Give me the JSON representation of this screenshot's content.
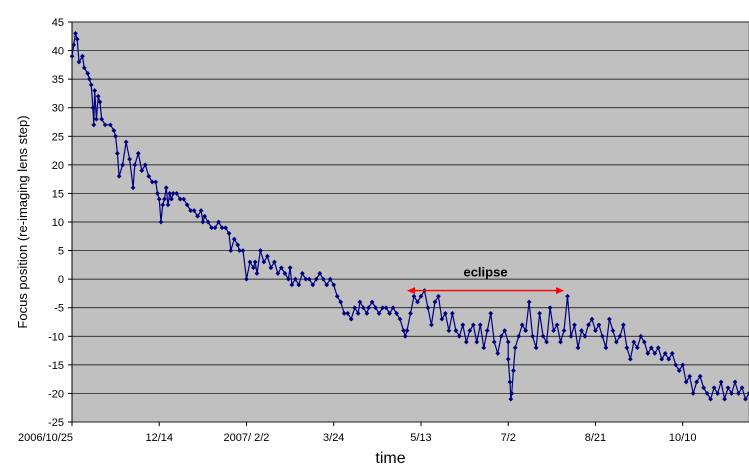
{
  "chart_data": {
    "type": "line",
    "title": "",
    "xlabel": "time",
    "ylabel": "Focus position (re-imaging lens step)",
    "ylim": [
      -25,
      45
    ],
    "y_ticks": [
      "45",
      "40",
      "35",
      "30",
      "25",
      "20",
      "15",
      "10",
      "5",
      "0",
      "-5",
      "-10",
      "-15",
      "-20",
      "-25"
    ],
    "x_ticks": [
      "2006/10/25",
      "12/14",
      "2007/ 2/2",
      "3/24",
      "5/13",
      "7/2",
      "8/21",
      "10/10"
    ],
    "x_tick_days": [
      0,
      50,
      100,
      150,
      200,
      250,
      300,
      350
    ],
    "xlim_days": [
      0,
      388
    ],
    "grid": true,
    "background": "#c0c0c0",
    "series_color": "#000080",
    "annotation": {
      "text": "eclipse",
      "from_day": 192,
      "to_day": 282,
      "y": -2,
      "color": "#ff0000"
    },
    "points": [
      [
        0,
        39
      ],
      [
        1,
        41
      ],
      [
        2,
        43
      ],
      [
        3,
        42
      ],
      [
        4,
        38
      ],
      [
        6,
        39
      ],
      [
        7,
        37
      ],
      [
        9,
        36
      ],
      [
        10,
        35
      ],
      [
        11,
        34
      ],
      [
        12,
        30
      ],
      [
        12.5,
        27
      ],
      [
        13,
        33
      ],
      [
        14,
        28
      ],
      [
        15,
        32
      ],
      [
        16,
        31
      ],
      [
        17,
        28
      ],
      [
        19,
        27
      ],
      [
        22,
        27
      ],
      [
        24,
        26
      ],
      [
        25,
        25
      ],
      [
        26,
        22
      ],
      [
        27,
        18
      ],
      [
        29,
        20
      ],
      [
        31,
        24
      ],
      [
        33,
        21
      ],
      [
        35,
        16
      ],
      [
        36,
        20
      ],
      [
        38,
        22
      ],
      [
        40,
        19
      ],
      [
        42,
        20
      ],
      [
        44,
        18
      ],
      [
        46,
        17
      ],
      [
        48,
        17
      ],
      [
        49,
        15
      ],
      [
        50,
        14
      ],
      [
        51,
        10
      ],
      [
        52,
        13
      ],
      [
        53,
        14
      ],
      [
        54,
        16
      ],
      [
        55,
        13
      ],
      [
        56,
        15
      ],
      [
        57,
        14
      ],
      [
        58,
        15
      ],
      [
        60,
        15
      ],
      [
        62,
        14
      ],
      [
        64,
        14
      ],
      [
        66,
        13
      ],
      [
        68,
        12
      ],
      [
        70,
        12
      ],
      [
        72,
        11
      ],
      [
        74,
        12
      ],
      [
        75,
        10
      ],
      [
        76,
        11
      ],
      [
        78,
        10
      ],
      [
        80,
        9
      ],
      [
        82,
        9
      ],
      [
        84,
        10
      ],
      [
        86,
        9
      ],
      [
        88,
        9
      ],
      [
        90,
        8
      ],
      [
        91,
        5
      ],
      [
        93,
        7
      ],
      [
        95,
        6
      ],
      [
        96,
        5
      ],
      [
        98,
        5
      ],
      [
        100,
        0
      ],
      [
        102,
        3
      ],
      [
        104,
        2
      ],
      [
        105,
        3
      ],
      [
        106,
        1
      ],
      [
        108,
        5
      ],
      [
        110,
        3
      ],
      [
        112,
        4
      ],
      [
        114,
        2
      ],
      [
        116,
        3
      ],
      [
        118,
        1
      ],
      [
        120,
        2
      ],
      [
        122,
        1
      ],
      [
        124,
        0
      ],
      [
        125,
        2
      ],
      [
        126,
        -1
      ],
      [
        128,
        0
      ],
      [
        130,
        -1
      ],
      [
        132,
        1
      ],
      [
        134,
        0
      ],
      [
        136,
        0
      ],
      [
        138,
        -1
      ],
      [
        140,
        0
      ],
      [
        142,
        1
      ],
      [
        144,
        0
      ],
      [
        146,
        -1
      ],
      [
        148,
        0
      ],
      [
        150,
        -1
      ],
      [
        152,
        -3
      ],
      [
        154,
        -4
      ],
      [
        156,
        -6
      ],
      [
        158,
        -6
      ],
      [
        160,
        -7
      ],
      [
        162,
        -5
      ],
      [
        164,
        -6
      ],
      [
        165,
        -4
      ],
      [
        167,
        -5
      ],
      [
        169,
        -6
      ],
      [
        170,
        -5
      ],
      [
        172,
        -4
      ],
      [
        174,
        -5
      ],
      [
        176,
        -6
      ],
      [
        178,
        -5
      ],
      [
        180,
        -5
      ],
      [
        182,
        -6
      ],
      [
        184,
        -5
      ],
      [
        186,
        -6
      ],
      [
        188,
        -7
      ],
      [
        190,
        -9
      ],
      [
        191,
        -10
      ],
      [
        192,
        -9
      ],
      [
        194,
        -6
      ],
      [
        196,
        -3
      ],
      [
        198,
        -4
      ],
      [
        200,
        -3
      ],
      [
        202,
        -2
      ],
      [
        204,
        -5
      ],
      [
        206,
        -8
      ],
      [
        208,
        -4
      ],
      [
        210,
        -3
      ],
      [
        212,
        -7
      ],
      [
        214,
        -6
      ],
      [
        216,
        -9
      ],
      [
        218,
        -6
      ],
      [
        220,
        -9
      ],
      [
        222,
        -10
      ],
      [
        224,
        -8
      ],
      [
        226,
        -11
      ],
      [
        228,
        -9
      ],
      [
        230,
        -8
      ],
      [
        232,
        -11
      ],
      [
        234,
        -8
      ],
      [
        236,
        -12
      ],
      [
        238,
        -9
      ],
      [
        240,
        -6
      ],
      [
        242,
        -11
      ],
      [
        244,
        -13
      ],
      [
        246,
        -10
      ],
      [
        248,
        -9
      ],
      [
        250,
        -11
      ],
      [
        250,
        -14
      ],
      [
        251,
        -18
      ],
      [
        251.5,
        -21
      ],
      [
        252,
        -20
      ],
      [
        253,
        -16
      ],
      [
        254,
        -12
      ],
      [
        256,
        -10
      ],
      [
        258,
        -8
      ],
      [
        260,
        -9
      ],
      [
        262,
        -4
      ],
      [
        264,
        -10
      ],
      [
        266,
        -12
      ],
      [
        268,
        -6
      ],
      [
        270,
        -10
      ],
      [
        272,
        -11
      ],
      [
        274,
        -5
      ],
      [
        276,
        -9
      ],
      [
        278,
        -8
      ],
      [
        280,
        -11
      ],
      [
        282,
        -9
      ],
      [
        284,
        -3
      ],
      [
        286,
        -10
      ],
      [
        288,
        -8
      ],
      [
        290,
        -12
      ],
      [
        292,
        -9
      ],
      [
        294,
        -10
      ],
      [
        296,
        -8
      ],
      [
        298,
        -7
      ],
      [
        300,
        -9
      ],
      [
        302,
        -8
      ],
      [
        304,
        -10
      ],
      [
        306,
        -12
      ],
      [
        308,
        -7
      ],
      [
        310,
        -9
      ],
      [
        312,
        -11
      ],
      [
        314,
        -10
      ],
      [
        316,
        -8
      ],
      [
        318,
        -12
      ],
      [
        320,
        -14
      ],
      [
        322,
        -11
      ],
      [
        324,
        -12
      ],
      [
        326,
        -10
      ],
      [
        328,
        -11
      ],
      [
        330,
        -13
      ],
      [
        332,
        -12
      ],
      [
        334,
        -13
      ],
      [
        336,
        -12
      ],
      [
        338,
        -14
      ],
      [
        340,
        -13
      ],
      [
        342,
        -14
      ],
      [
        344,
        -13
      ],
      [
        346,
        -15
      ],
      [
        348,
        -16
      ],
      [
        350,
        -15
      ],
      [
        352,
        -18
      ],
      [
        354,
        -17
      ],
      [
        356,
        -20
      ],
      [
        358,
        -18
      ],
      [
        360,
        -17
      ],
      [
        362,
        -19
      ],
      [
        364,
        -20
      ],
      [
        366,
        -21
      ],
      [
        368,
        -19
      ],
      [
        370,
        -20
      ],
      [
        372,
        -18
      ],
      [
        374,
        -21
      ],
      [
        376,
        -19
      ],
      [
        378,
        -20
      ],
      [
        380,
        -18
      ],
      [
        382,
        -20
      ],
      [
        384,
        -19
      ],
      [
        386,
        -21
      ],
      [
        388,
        -20
      ]
    ]
  }
}
